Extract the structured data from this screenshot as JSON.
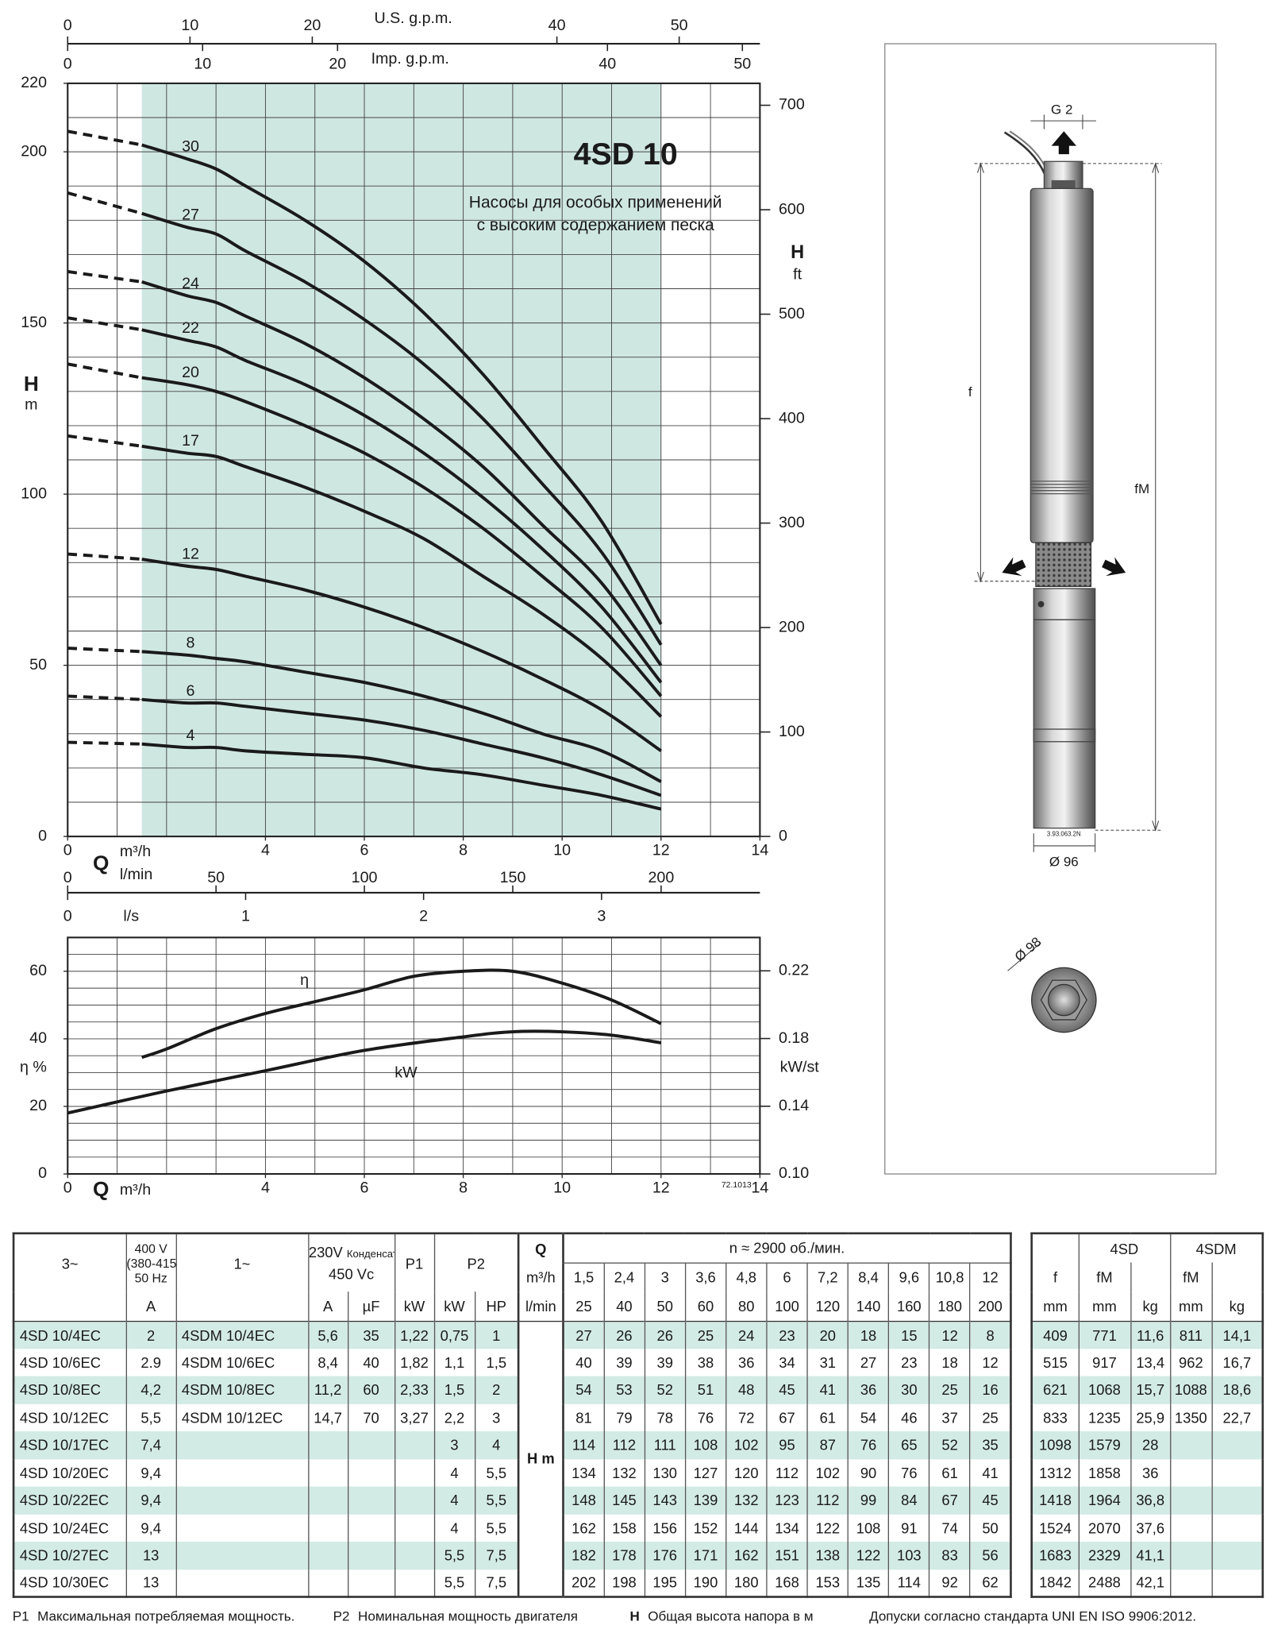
{
  "chart_data": [
    {
      "type": "line",
      "title": "4SD 10",
      "subtitle": [
        "Насосы для особых применений",
        "с высоким содержанием песка"
      ],
      "y_label": "H",
      "y_unit": "m",
      "y2_label": "H",
      "y2_unit": "ft",
      "x_label": "Q",
      "x_unit": "m³/h",
      "x": [
        0,
        1.5,
        2.4,
        3,
        3.6,
        4.8,
        6,
        7.2,
        8.4,
        9.6,
        10.8,
        12
      ],
      "series": [
        {
          "name": "30",
          "color": "#1a1a1a",
          "values": [
            206,
            202,
            198,
            195,
            190,
            180,
            168,
            153,
            135,
            114,
            92,
            62
          ]
        },
        {
          "name": "27",
          "color": "#1a1a1a",
          "values": [
            188,
            182,
            178,
            176,
            171,
            162,
            151,
            138,
            122,
            103,
            83,
            56
          ]
        },
        {
          "name": "24",
          "color": "#1a1a1a",
          "values": [
            165,
            162,
            158,
            156,
            152,
            144,
            134,
            122,
            108,
            91,
            74,
            50
          ]
        },
        {
          "name": "22",
          "color": "#1a1a1a",
          "values": [
            151.5,
            148,
            145,
            143,
            139,
            132,
            123,
            112,
            99,
            84,
            67,
            45
          ]
        },
        {
          "name": "20",
          "color": "#1a1a1a",
          "values": [
            138,
            134,
            132,
            130,
            127,
            120,
            112,
            102,
            90,
            76,
            61,
            41
          ]
        },
        {
          "name": "17",
          "color": "#1a1a1a",
          "values": [
            117,
            114,
            112,
            111,
            108,
            102,
            95,
            87,
            76,
            65,
            52,
            35
          ]
        },
        {
          "name": "12",
          "color": "#1a1a1a",
          "values": [
            82.5,
            81,
            79,
            78,
            76,
            72,
            67,
            61,
            54,
            46,
            37,
            25
          ]
        },
        {
          "name": "8",
          "color": "#1a1a1a",
          "values": [
            55,
            54,
            53,
            52,
            51,
            48,
            45,
            41,
            36,
            30,
            25,
            16
          ]
        },
        {
          "name": "6",
          "color": "#1a1a1a",
          "values": [
            41,
            40,
            39,
            39,
            38,
            36,
            34,
            31,
            27,
            23,
            18,
            12
          ]
        },
        {
          "name": "4",
          "color": "#1a1a1a",
          "values": [
            27.5,
            27,
            26,
            26,
            25,
            24,
            23,
            20,
            18,
            15,
            12,
            8
          ]
        }
      ],
      "xlim": [
        0,
        14
      ],
      "xticks": [
        0,
        4,
        6,
        8,
        10,
        12,
        14
      ],
      "ylim": [
        0,
        220
      ],
      "yticks": [
        0,
        50,
        100,
        150,
        200,
        220
      ],
      "y2lim": [
        0,
        721
      ],
      "y2ticks": [
        0,
        100,
        200,
        300,
        400,
        500,
        600,
        700
      ],
      "grid": true,
      "x_grid_step": 1,
      "y_grid_step": 10,
      "recommended_range": [
        1.5,
        12
      ],
      "recommended_color": "#cfe7e1",
      "secondary_x_axes": [
        {
          "label": "U.S. g.p.m.",
          "xlim": [
            0,
            56.6
          ],
          "xticks": [
            0,
            10,
            20,
            40,
            50
          ]
        },
        {
          "label": "Imp. g.p.m.",
          "xlim": [
            0,
            51.3
          ],
          "xticks": [
            0,
            10,
            20,
            40,
            50
          ]
        },
        {
          "label": "l/min",
          "xlim": [
            0,
            233.3
          ],
          "xticks": [
            0,
            50,
            100,
            150,
            200
          ]
        },
        {
          "label": "l/s",
          "xlim": [
            0,
            3.89
          ],
          "xticks": [
            0,
            1,
            2,
            3
          ]
        }
      ]
    },
    {
      "type": "line",
      "y_label": "η",
      "y_unit": "%",
      "y2_unit": "kW/st",
      "x_label": "Q",
      "x_unit": "m³/h",
      "code": "72.1013",
      "series": [
        {
          "name": "η",
          "color": "#1a1a1a",
          "x": [
            1.5,
            2,
            3,
            4,
            5,
            6,
            7,
            8,
            9,
            10,
            11,
            12
          ],
          "values": [
            34.5,
            37,
            43,
            47.5,
            51,
            54.5,
            58.5,
            60,
            60,
            56.5,
            51.5,
            44.5
          ]
        },
        {
          "name": "kW",
          "color": "#1a1a1a",
          "axis": "y2",
          "x": [
            0,
            2,
            4,
            6,
            8,
            9,
            10,
            11,
            12
          ],
          "values": [
            0.136,
            0.149,
            0.161,
            0.173,
            0.181,
            0.184,
            0.184,
            0.182,
            0.1775
          ]
        }
      ],
      "xlim": [
        0,
        14
      ],
      "xticks": [
        0,
        4,
        6,
        8,
        10,
        12,
        14
      ],
      "ylim": [
        0,
        70
      ],
      "yticks": [
        0,
        20,
        40,
        60
      ],
      "y2lim": [
        0.1,
        0.2397
      ],
      "y2ticks": [
        {
          "value": 0.1,
          "label": "0.10"
        },
        0.14,
        0.18,
        0.22
      ],
      "grid": true,
      "x_grid_step": 1,
      "y_grid_step": 5
    }
  ],
  "diagram": {
    "outlet": "G 2",
    "f": "f",
    "fm": "fM",
    "diameter": "Ø 96",
    "diameter_top": "Ø 98",
    "code": "3.93.063.2N"
  },
  "table": {
    "headers": {
      "phase3": "3~",
      "voltage3": [
        "400 V",
        "(380-415)",
        "50 Hz"
      ],
      "amps": "A",
      "phase1": "1~",
      "voltage1": "230V",
      "capacitor": "Конденсатор",
      "capacitor_voltage": "450 Vc",
      "p1": "P1",
      "uf": "µF",
      "kw": "kW",
      "p2": "P2",
      "hp": "HP",
      "q": "Q",
      "q_m3h": "m³/h",
      "q_lmin": "l/min",
      "speed": "n ≈ 2900 об./мин.",
      "h": "H m",
      "flow_m3h": [
        "1,5",
        "2,4",
        "3",
        "3,6",
        "4,8",
        "6",
        "7,2",
        "8,4",
        "9,6",
        "10,8",
        "12"
      ],
      "flow_lmin": [
        25,
        40,
        50,
        60,
        80,
        100,
        120,
        140,
        160,
        180,
        200
      ],
      "dims_groups": [
        "4SD",
        "4SDM"
      ],
      "dims_names": [
        "f",
        "fM",
        "fM"
      ],
      "dims_units": [
        "mm",
        "mm",
        "kg",
        "mm",
        "kg"
      ]
    },
    "rows": [
      {
        "model3": "4SD 10/4EC",
        "amps3": 2,
        "model1": "4SDM 10/4EC",
        "amps1": "5,6",
        "uf": 35,
        "p1": "1,22",
        "p2_kw": "0,75",
        "p2_hp": 1,
        "heads": [
          27,
          26,
          26,
          25,
          24,
          23,
          20,
          18,
          15,
          12,
          8
        ],
        "f": 409,
        "fm_sd": 771,
        "kg_sd": "11,6",
        "fm_sdm": 811,
        "kg_sdm": "14,1"
      },
      {
        "model3": "4SD 10/6EC",
        "amps3": "2.9",
        "model1": "4SDM 10/6EC",
        "amps1": "8,4",
        "uf": 40,
        "p1": "1,82",
        "p2_kw": "1,1",
        "p2_hp": "1,5",
        "heads": [
          40,
          39,
          39,
          38,
          36,
          34,
          31,
          27,
          23,
          18,
          12
        ],
        "f": 515,
        "fm_sd": 917,
        "kg_sd": "13,4",
        "fm_sdm": 962,
        "kg_sdm": "16,7"
      },
      {
        "model3": "4SD 10/8EC",
        "amps3": "4,2",
        "model1": "4SDM 10/8EC",
        "amps1": "11,2",
        "uf": 60,
        "p1": "2,33",
        "p2_kw": "1,5",
        "p2_hp": 2,
        "heads": [
          54,
          53,
          52,
          51,
          48,
          45,
          41,
          36,
          30,
          25,
          16
        ],
        "f": 621,
        "fm_sd": 1068,
        "kg_sd": "15,7",
        "fm_sdm": 1088,
        "kg_sdm": "18,6"
      },
      {
        "model3": "4SD 10/12EC",
        "amps3": "5,5",
        "model1": "4SDM 10/12EC",
        "amps1": "14,7",
        "uf": 70,
        "p1": "3,27",
        "p2_kw": "2,2",
        "p2_hp": 3,
        "heads": [
          81,
          79,
          78,
          76,
          72,
          67,
          61,
          54,
          46,
          37,
          25
        ],
        "f": 833,
        "fm_sd": 1235,
        "kg_sd": "25,9",
        "fm_sdm": 1350,
        "kg_sdm": "22,7"
      },
      {
        "model3": "4SD 10/17EC",
        "amps3": "7,4",
        "p2_kw": 3,
        "p2_hp": 4,
        "heads": [
          114,
          112,
          111,
          108,
          102,
          95,
          87,
          76,
          65,
          52,
          35
        ],
        "f": 1098,
        "fm_sd": 1579,
        "kg_sd": 28
      },
      {
        "model3": "4SD 10/20EC",
        "amps3": "9,4",
        "p2_kw": 4,
        "p2_hp": "5,5",
        "heads": [
          134,
          132,
          130,
          127,
          120,
          112,
          102,
          90,
          76,
          61,
          41
        ],
        "f": 1312,
        "fm_sd": 1858,
        "kg_sd": 36
      },
      {
        "model3": "4SD 10/22EC",
        "amps3": "9,4",
        "p2_kw": 4,
        "p2_hp": "5,5",
        "heads": [
          148,
          145,
          143,
          139,
          132,
          123,
          112,
          99,
          84,
          67,
          45
        ],
        "f": 1418,
        "fm_sd": 1964,
        "kg_sd": "36,8"
      },
      {
        "model3": "4SD 10/24EC",
        "amps3": "9,4",
        "p2_kw": 4,
        "p2_hp": "5,5",
        "heads": [
          162,
          158,
          156,
          152,
          144,
          134,
          122,
          108,
          91,
          74,
          50
        ],
        "f": 1524,
        "fm_sd": 2070,
        "kg_sd": "37,6"
      },
      {
        "model3": "4SD 10/27EC",
        "amps3": 13,
        "p2_kw": "5,5",
        "p2_hp": "7,5",
        "heads": [
          182,
          178,
          176,
          171,
          162,
          151,
          138,
          122,
          103,
          83,
          56
        ],
        "f": 1683,
        "fm_sd": 2329,
        "kg_sd": "41,1"
      },
      {
        "model3": "4SD 10/30EC",
        "amps3": 13,
        "p2_kw": "5,5",
        "p2_hp": "7,5",
        "heads": [
          202,
          198,
          195,
          190,
          180,
          168,
          153,
          135,
          114,
          92,
          62
        ],
        "f": 1842,
        "fm_sd": 2488,
        "kg_sd": "42,1"
      }
    ]
  },
  "footnotes": [
    {
      "symbol": "P1",
      "text": "Максимальная потребляемая мощность."
    },
    {
      "symbol": "P2",
      "text": "Номинальная мощность двигателя"
    },
    {
      "symbol": "H",
      "text": "Общая высота напора в м"
    },
    {
      "text": "Допуски согласно стандарта UNI EN ISO 9906:2012."
    }
  ]
}
